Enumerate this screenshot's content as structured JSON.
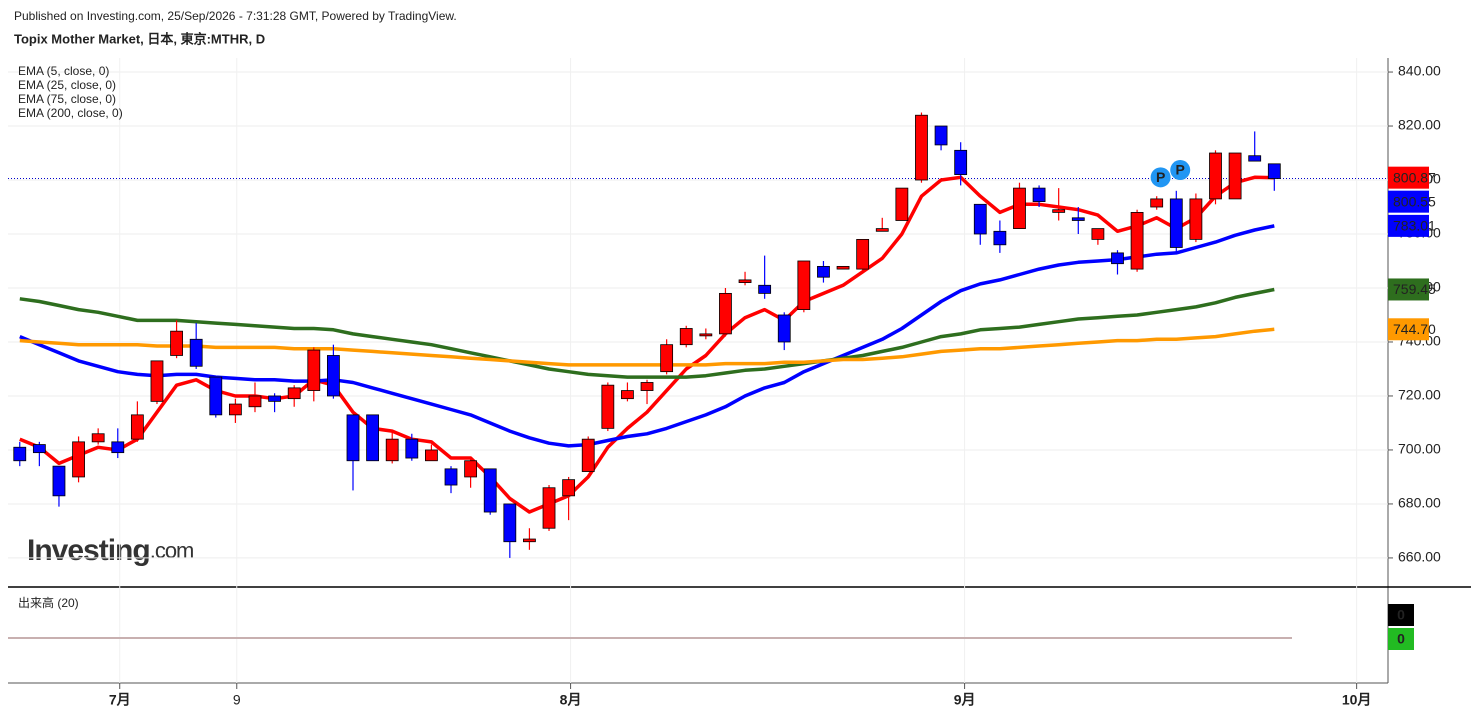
{
  "header": {
    "published": "Published on Investing.com, 25/Sep/2026 - 7:31:28 GMT, Powered by TradingView.",
    "watermark": [
      "Investing",
      ".com"
    ]
  },
  "chart_data": [
    {
      "type": "candlestick",
      "title": "Topix Mother Market, 日本, 東京:MTHR, D",
      "categories": [
        null,
        null,
        null,
        null,
        null,
        null,
        null,
        null,
        null,
        null,
        null,
        null,
        null,
        null,
        null,
        null,
        null,
        null,
        null,
        null,
        null,
        null,
        null,
        null,
        null,
        null,
        null,
        null,
        null,
        null,
        null,
        null,
        null,
        null,
        null,
        null,
        null,
        null,
        null,
        null,
        null,
        null,
        null,
        null,
        null,
        null,
        null,
        null,
        null,
        null,
        null,
        null,
        null,
        null,
        null,
        null,
        null,
        null,
        null,
        null,
        null,
        null,
        null,
        null,
        null
      ],
      "open": [
        701,
        702,
        694,
        690,
        703,
        703,
        704,
        718,
        735,
        741,
        727,
        713,
        716,
        720,
        719,
        722,
        735,
        713,
        713,
        696,
        704,
        696,
        693,
        690,
        693,
        680,
        666,
        671,
        683,
        692,
        708,
        719,
        722,
        729,
        739,
        743,
        743,
        762,
        761,
        750,
        752,
        768,
        767,
        767,
        781,
        785,
        800,
        820,
        811,
        791,
        781,
        782,
        797,
        788,
        786,
        778,
        773,
        767,
        790,
        793,
        778,
        793,
        793,
        809,
        806
      ],
      "high": [
        703,
        703,
        694,
        705,
        708,
        708,
        718,
        733,
        748,
        747,
        727,
        719,
        725,
        721,
        724,
        738,
        739,
        713,
        713,
        707,
        706,
        702,
        694,
        697,
        693,
        680,
        671,
        687,
        690,
        705,
        725,
        725,
        726,
        741,
        746,
        745,
        760,
        766,
        772,
        751,
        770,
        770,
        768,
        778,
        786,
        797,
        825,
        820,
        814,
        791,
        785,
        799,
        798,
        797,
        790,
        782,
        774,
        789,
        794,
        796,
        795,
        811,
        810,
        818,
        806
      ],
      "low": [
        694,
        694,
        679,
        688,
        702,
        697,
        703,
        717,
        734,
        730,
        712,
        710,
        714,
        714,
        716,
        718,
        719,
        685,
        696,
        695,
        696,
        696,
        684,
        686,
        676,
        660,
        663,
        670,
        674,
        692,
        707,
        718,
        717,
        728,
        738,
        741,
        742,
        761,
        756,
        737,
        751,
        762,
        767,
        766,
        781,
        785,
        799,
        811,
        798,
        776,
        773,
        782,
        790,
        785,
        780,
        776,
        765,
        766,
        789,
        773,
        777,
        791,
        793,
        807,
        796
      ],
      "close": [
        696,
        699,
        683,
        703,
        706,
        699,
        713,
        733,
        744,
        731,
        713,
        717,
        720,
        718,
        723,
        737,
        720,
        696,
        696,
        704,
        697,
        700,
        687,
        696,
        677,
        666,
        667,
        686,
        689,
        704,
        724,
        722,
        725,
        739,
        745,
        743,
        758,
        763,
        758,
        740,
        770,
        764,
        768,
        778,
        782,
        797,
        824,
        813,
        802,
        780,
        776,
        797,
        792,
        789,
        785,
        782,
        769,
        788,
        793,
        775,
        793,
        810,
        810,
        807,
        800.55
      ],
      "close_label": "800.55",
      "up_color": "#ff0000",
      "down_color": "#0000ff",
      "series": [
        {
          "name": "EMA (5, close, 0)",
          "color": "#ff0000",
          "last_label": "800.87",
          "values": [
            704,
            701,
            695,
            698,
            701,
            700,
            704,
            714,
            724,
            726,
            722,
            720,
            720,
            719,
            720,
            726,
            724,
            714,
            708,
            707,
            704,
            703,
            697,
            697,
            690,
            682,
            677,
            680,
            683,
            690,
            701,
            708,
            714,
            722,
            730,
            735,
            743,
            749,
            752,
            748,
            755,
            758,
            761,
            766,
            771,
            780,
            794,
            800,
            801,
            794,
            788,
            791,
            791,
            790,
            789,
            787,
            781,
            783,
            786,
            782,
            786,
            794,
            799,
            801,
            800.87
          ]
        },
        {
          "name": "EMA (25, close, 0)",
          "color": "#0000ff",
          "last_label": "783.01",
          "values": [
            742,
            739,
            736,
            733,
            731,
            729,
            728,
            727.5,
            728,
            728,
            727,
            726.5,
            726,
            726,
            725.5,
            725.5,
            726,
            725,
            723,
            721,
            719,
            717,
            715,
            713,
            710,
            707,
            704.5,
            702.5,
            701.5,
            702,
            703.5,
            705,
            706,
            708,
            710.5,
            713,
            716,
            720,
            723,
            725,
            729,
            732,
            735,
            738,
            741,
            745,
            750,
            755,
            759,
            761.5,
            763,
            765,
            767,
            768.5,
            769.5,
            770,
            770.5,
            771.5,
            772.5,
            773,
            775,
            777,
            779.5,
            781.5,
            783.01
          ]
        },
        {
          "name": "EMA (75, close, 0)",
          "color": "#2e6e1e",
          "last_label": "759.45",
          "values": [
            756,
            755,
            753.5,
            752,
            751,
            749.5,
            748,
            748,
            748,
            747.5,
            747,
            746.5,
            746,
            745.5,
            745,
            745,
            744.5,
            743,
            742,
            741,
            740,
            739,
            737.5,
            736,
            734.5,
            733,
            731.5,
            730,
            729,
            728,
            727.5,
            727,
            727,
            727,
            727,
            727.5,
            728.5,
            729.5,
            730,
            731,
            732,
            733,
            734,
            735,
            736.5,
            738,
            740,
            742,
            743,
            744.5,
            745,
            745.5,
            746.5,
            747.5,
            748.5,
            749,
            749.5,
            750,
            751,
            752,
            753,
            754.5,
            756.5,
            758,
            759.45
          ]
        },
        {
          "name": "EMA (200, close, 0)",
          "color": "#ff9900",
          "last_label": "744.70",
          "values": [
            740.5,
            740,
            739.5,
            739,
            739,
            739,
            739,
            738.5,
            738.5,
            738.5,
            738,
            738,
            738,
            738,
            737.5,
            737.5,
            737.5,
            737,
            736.5,
            736,
            735.5,
            735,
            734.5,
            734,
            733.5,
            733,
            732.5,
            732,
            731.5,
            731.5,
            731.5,
            731.5,
            731.5,
            731.5,
            731.5,
            731.5,
            732,
            732,
            732,
            732.5,
            732.5,
            733,
            733.5,
            733.5,
            734,
            734.5,
            735.5,
            736.5,
            737,
            737.5,
            737.5,
            738,
            738.5,
            739,
            739.5,
            740,
            740.5,
            740.5,
            741,
            741,
            741.5,
            742,
            743,
            744,
            744.7
          ]
        }
      ],
      "annotations": [
        {
          "text": "P",
          "x": 58.2,
          "y": 801
        },
        {
          "text": "P",
          "x": 59.2,
          "y": 803.7
        }
      ],
      "xlim": [
        -0.6,
        69.8
      ],
      "xticks": [
        {
          "value": 5.1,
          "label": "7月"
        },
        {
          "value": 11.07,
          "label": "9"
        },
        {
          "value": 28.1,
          "label": "8月"
        },
        {
          "value": 48.2,
          "label": "9月"
        },
        {
          "value": 68.2,
          "label": "10月"
        }
      ],
      "ylim": [
        649.6,
        845.2
      ],
      "yticks": [
        {
          "value": 660,
          "label": "660.00"
        },
        {
          "value": 680,
          "label": "680.00"
        },
        {
          "value": 700,
          "label": "700.00"
        },
        {
          "value": 720,
          "label": "720.00"
        },
        {
          "value": 740,
          "label": "740.00"
        },
        {
          "value": 760,
          "label": "760.00"
        },
        {
          "value": 780,
          "label": "780.00"
        },
        {
          "value": 800,
          "label": "800.00"
        },
        {
          "value": 820,
          "label": "820.00"
        },
        {
          "value": 840,
          "label": "840.00"
        }
      ],
      "grid": true
    },
    {
      "type": "volume",
      "title": "出来高 (20)",
      "values": [
        0,
        0
      ],
      "colors": [
        "#000000",
        "#22bb22"
      ]
    }
  ]
}
